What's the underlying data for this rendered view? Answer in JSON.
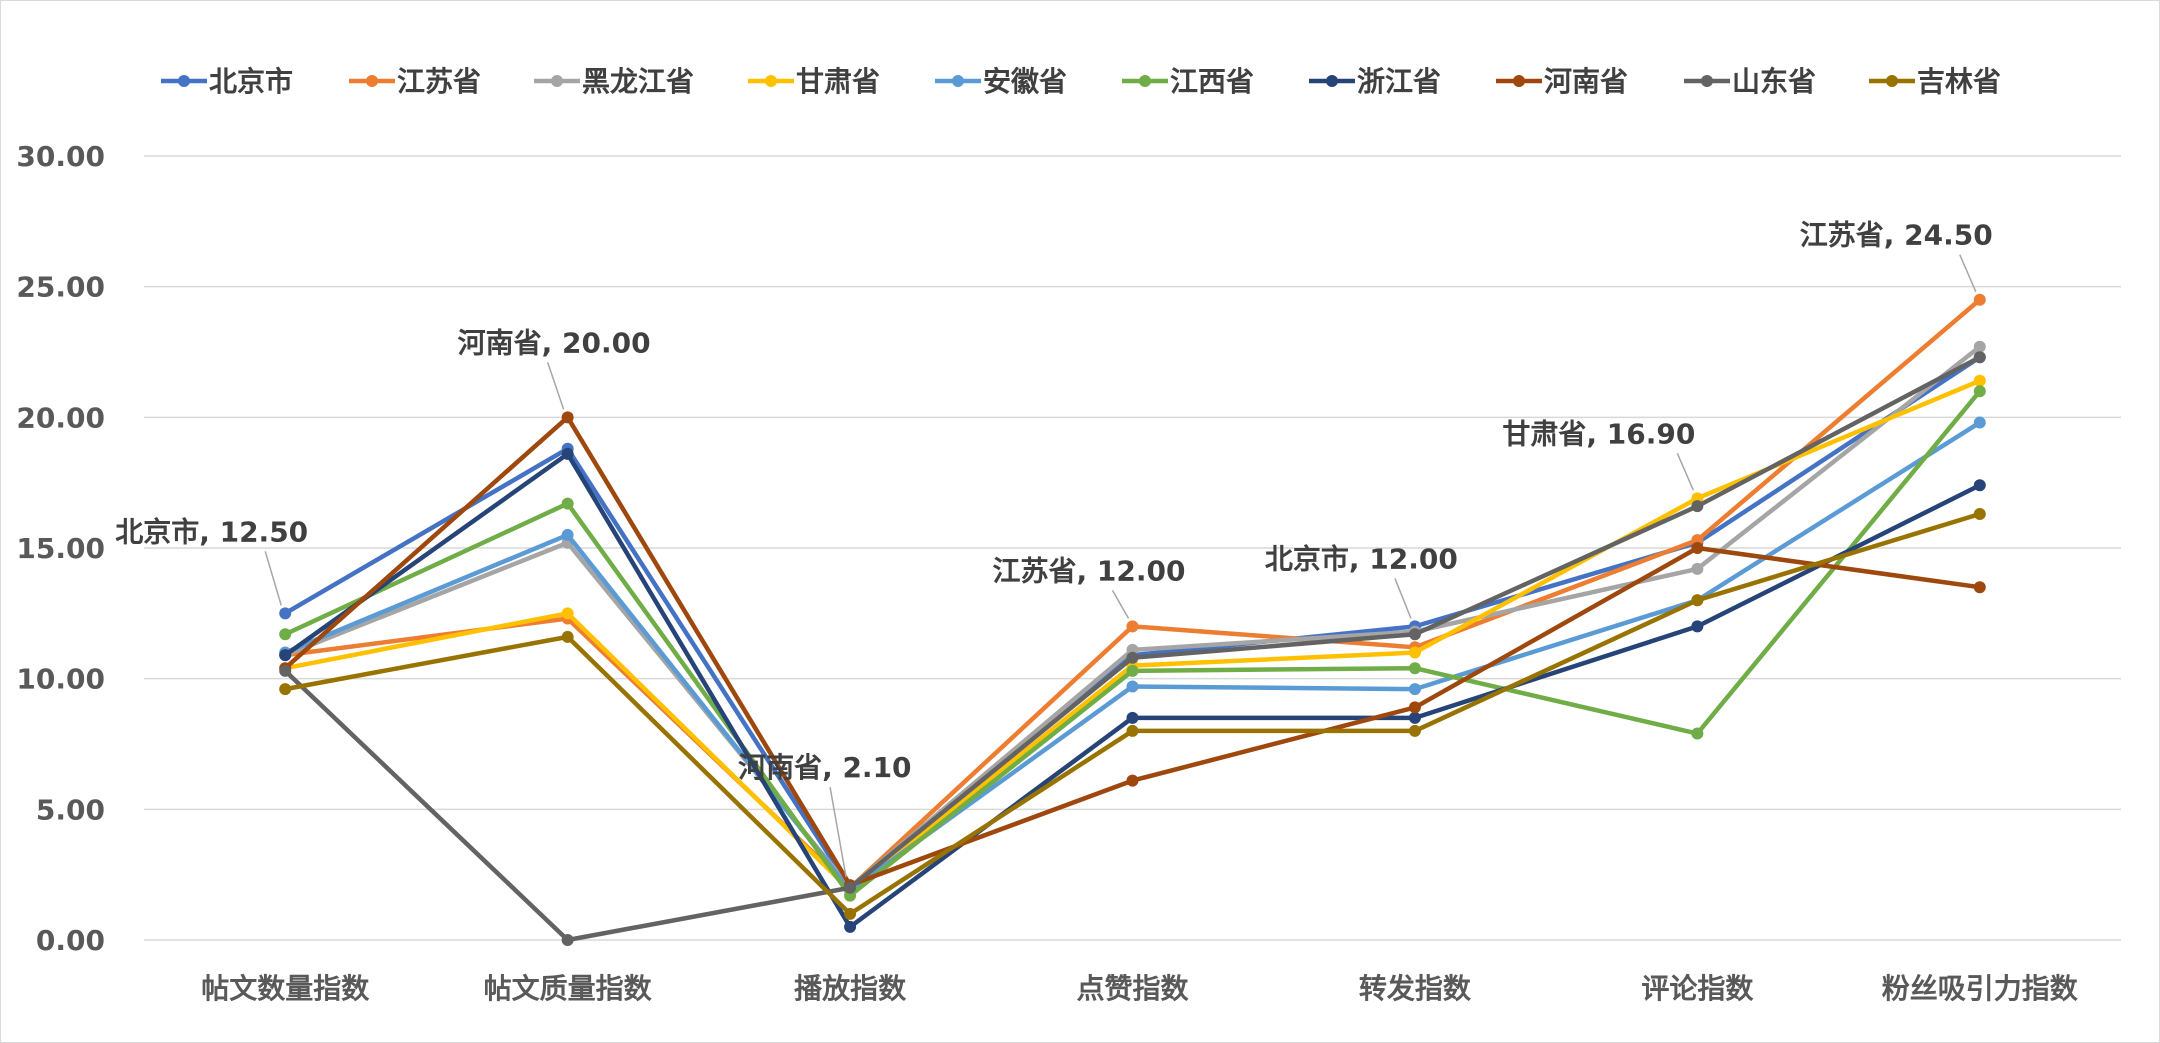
{
  "chart_data": {
    "type": "line",
    "title": "",
    "xlabel": "",
    "ylabel": "",
    "ylim": [
      0,
      30
    ],
    "y_ticks": [
      "0.00",
      "5.00",
      "10.00",
      "15.00",
      "20.00",
      "25.00",
      "30.00"
    ],
    "grid": "horizontal",
    "legend_position": "top",
    "categories": [
      "帖文数量指数",
      "帖文质量指数",
      "播放指数",
      "点赞指数",
      "转发指数",
      "评论指数",
      "粉丝吸引力指数"
    ],
    "series": [
      {
        "name": "北京市",
        "color": "#4472C4",
        "values": [
          12.5,
          18.8,
          2.0,
          10.9,
          12.0,
          15.2,
          22.3
        ]
      },
      {
        "name": "江苏省",
        "color": "#ED7D31",
        "values": [
          10.9,
          12.3,
          2.0,
          12.0,
          11.2,
          15.3,
          24.5
        ]
      },
      {
        "name": "黑龙江省",
        "color": "#A5A5A5",
        "values": [
          10.9,
          15.2,
          2.0,
          11.1,
          11.8,
          14.2,
          22.7
        ]
      },
      {
        "name": "甘肃省",
        "color": "#FFC000",
        "values": [
          10.4,
          12.5,
          1.9,
          10.5,
          11.0,
          16.9,
          21.4
        ]
      },
      {
        "name": "安徽省",
        "color": "#5B9BD5",
        "values": [
          11.0,
          15.5,
          1.9,
          9.7,
          9.6,
          13.0,
          19.8
        ]
      },
      {
        "name": "江西省",
        "color": "#70AD47",
        "values": [
          11.7,
          16.7,
          1.7,
          10.3,
          10.4,
          7.9,
          21.0
        ]
      },
      {
        "name": "浙江省",
        "color": "#264478",
        "values": [
          10.9,
          18.6,
          0.5,
          8.5,
          8.5,
          12.0,
          17.4
        ]
      },
      {
        "name": "河南省",
        "color": "#9E480E",
        "values": [
          10.4,
          20.0,
          2.1,
          6.1,
          8.9,
          15.0,
          13.5
        ]
      },
      {
        "name": "山东省",
        "color": "#636363",
        "values": [
          10.3,
          0.0,
          2.0,
          10.8,
          11.7,
          16.6,
          22.3
        ]
      },
      {
        "name": "吉林省",
        "color": "#997300",
        "values": [
          9.6,
          11.6,
          1.0,
          8.0,
          8.0,
          13.0,
          16.3
        ]
      }
    ],
    "annotations": [
      {
        "series": "北京市",
        "category": "帖文数量指数",
        "text": "北京市, 12.50"
      },
      {
        "series": "河南省",
        "category": "帖文质量指数",
        "text": "河南省, 20.00"
      },
      {
        "series": "河南省",
        "category": "播放指数",
        "text": "河南省, 2.10"
      },
      {
        "series": "江苏省",
        "category": "点赞指数",
        "text": "江苏省, 12.00"
      },
      {
        "series": "北京市",
        "category": "转发指数",
        "text": "北京市, 12.00"
      },
      {
        "series": "甘肃省",
        "category": "评论指数",
        "text": "甘肃省, 16.90"
      },
      {
        "series": "江苏省",
        "category": "粉丝吸引力指数",
        "text": "江苏省, 24.50"
      }
    ]
  }
}
